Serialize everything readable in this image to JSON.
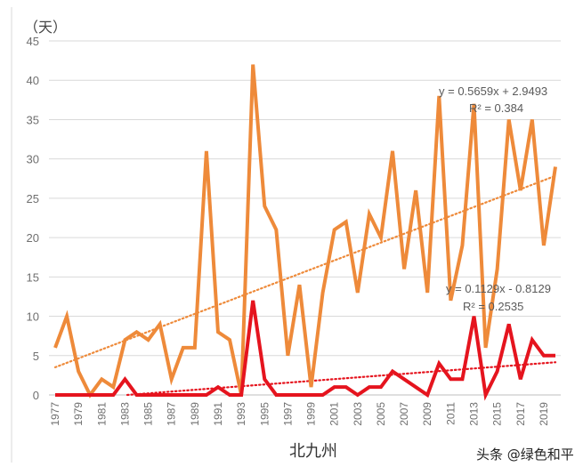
{
  "chart_data": {
    "type": "line",
    "unit_label": "（天）",
    "xlabel": "北九州",
    "ylim": [
      0,
      45
    ],
    "yticks": [
      "0",
      "5",
      "10",
      "15",
      "20",
      "25",
      "30",
      "35",
      "40",
      "45"
    ],
    "x": [
      1977,
      1978,
      1979,
      1980,
      1981,
      1982,
      1983,
      1984,
      1985,
      1986,
      1987,
      1988,
      1989,
      1990,
      1991,
      1992,
      1993,
      1994,
      1995,
      1996,
      1997,
      1998,
      1999,
      2000,
      2001,
      2002,
      2003,
      2004,
      2005,
      2006,
      2007,
      2008,
      2009,
      2010,
      2011,
      2012,
      2013,
      2014,
      2015,
      2016,
      2017,
      2018,
      2019,
      2020
    ],
    "xtick_labels": [
      "1977",
      "1979",
      "1981",
      "1983",
      "1985",
      "1987",
      "1989",
      "1991",
      "1993",
      "1995",
      "1997",
      "1999",
      "2001",
      "2003",
      "2005",
      "2007",
      "2009",
      "2011",
      "2013",
      "2015",
      "2017",
      "2019"
    ],
    "series": [
      {
        "name": "orange",
        "color": "#EE8A3A",
        "values": [
          6,
          10,
          3,
          0,
          2,
          1,
          7,
          8,
          7,
          9,
          2,
          6,
          6,
          31,
          8,
          7,
          0,
          42,
          24,
          21,
          5,
          14,
          1,
          13,
          21,
          22,
          13,
          23,
          20,
          31,
          16,
          26,
          13,
          38,
          12,
          19,
          37,
          6,
          16,
          35,
          26,
          35,
          19,
          29
        ],
        "trend": {
          "slope": 0.5659,
          "intercept": 2.9493
        },
        "equation": "y = 0.5659x + 2.9493",
        "r2": "R² = 0.384"
      },
      {
        "name": "red",
        "color": "#E5141E",
        "values": [
          0,
          0,
          0,
          0,
          0,
          0,
          2,
          0,
          0,
          0,
          0,
          0,
          0,
          0,
          1,
          0,
          0,
          12,
          2,
          0,
          0,
          0,
          0,
          0,
          1,
          1,
          0,
          1,
          1,
          3,
          2,
          1,
          0,
          4,
          2,
          2,
          10,
          0,
          3,
          9,
          2,
          7,
          5,
          5
        ],
        "trend": {
          "slope": 0.1129,
          "intercept": -0.8129
        },
        "equation": "y = 0.1129x - 0.8129",
        "r2": "R² = 0.2535"
      }
    ]
  },
  "watermark": "头条 @绿色和平"
}
